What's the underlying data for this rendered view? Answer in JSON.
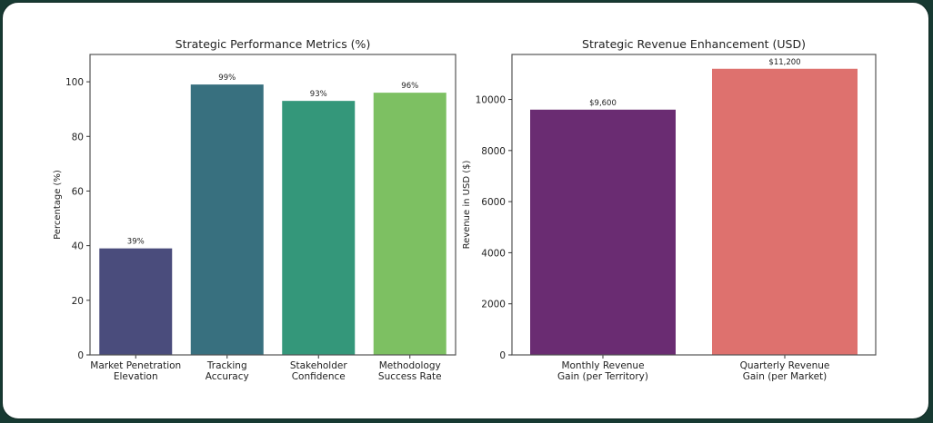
{
  "chart_data": [
    {
      "type": "bar",
      "title": "Strategic Performance Metrics (%)",
      "xlabel": "",
      "ylabel": "Percentage (%)",
      "categories": [
        [
          "Market Penetration",
          "Elevation"
        ],
        [
          "Tracking",
          "Accuracy"
        ],
        [
          "Stakeholder",
          "Confidence"
        ],
        [
          "Methodology",
          "Success Rate"
        ]
      ],
      "values": [
        39,
        99,
        93,
        96
      ],
      "data_labels": [
        "39%",
        "99%",
        "93%",
        "96%"
      ],
      "colors": [
        "#4a4c7c",
        "#38707f",
        "#34977a",
        "#7dc062"
      ],
      "ylim": [
        0,
        110
      ],
      "yticks": [
        0,
        20,
        40,
        60,
        80,
        100
      ],
      "grid": false
    },
    {
      "type": "bar",
      "title": "Strategic Revenue Enhancement (USD)",
      "xlabel": "",
      "ylabel": "Revenue in USD ($)",
      "categories": [
        [
          "Monthly Revenue",
          "Gain (per Territory)"
        ],
        [
          "Quarterly Revenue",
          "Gain (per Market)"
        ]
      ],
      "values": [
        9600,
        11200
      ],
      "data_labels": [
        "$9,600",
        "$11,200"
      ],
      "colors": [
        "#6a2c72",
        "#de716e"
      ],
      "ylim": [
        0,
        11760
      ],
      "yticks": [
        0,
        2000,
        4000,
        6000,
        8000,
        10000
      ],
      "grid": false
    }
  ]
}
